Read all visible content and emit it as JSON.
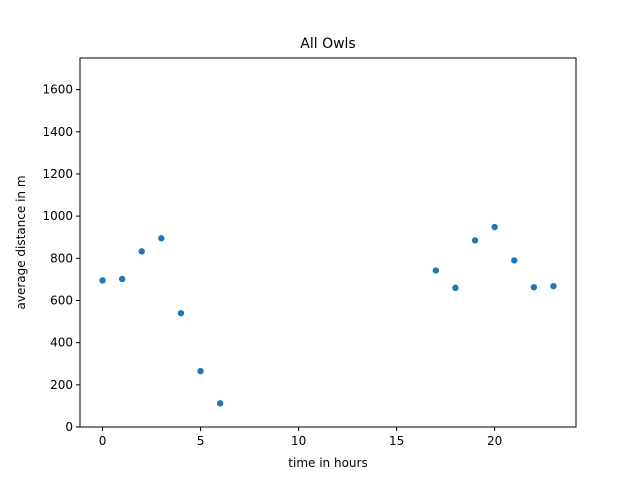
{
  "chart_data": {
    "type": "scatter",
    "title": "All Owls",
    "xlabel": "time in hours",
    "ylabel": "average distance in m",
    "xlim": [
      -1.15,
      24.15
    ],
    "ylim": [
      0,
      1750
    ],
    "x_ticks": [
      0,
      5,
      10,
      15,
      20
    ],
    "y_ticks": [
      0,
      200,
      400,
      600,
      800,
      1000,
      1200,
      1400,
      1600
    ],
    "grid": false,
    "legend": "none",
    "marker_color": "#1f77b4",
    "x": [
      0,
      1,
      2,
      3,
      4,
      5,
      6,
      17,
      18,
      19,
      20,
      21,
      22,
      23
    ],
    "y": [
      695,
      702,
      833,
      895,
      540,
      265,
      112,
      742,
      660,
      885,
      948,
      790,
      663,
      668
    ]
  }
}
